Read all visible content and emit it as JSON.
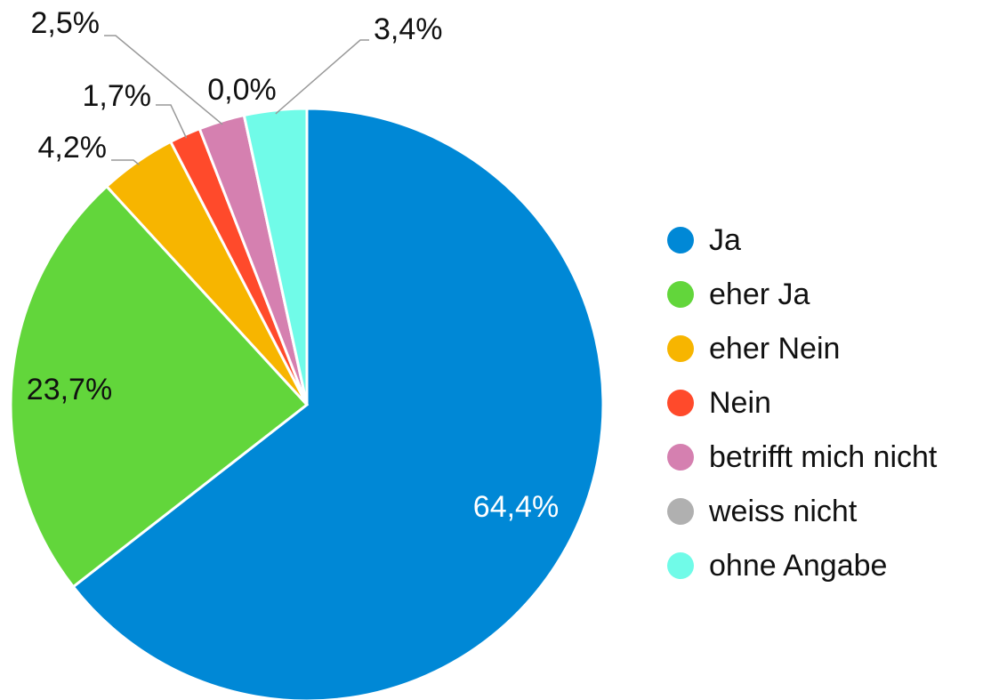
{
  "chart_data": {
    "type": "pie",
    "categories": [
      "Ja",
      "eher Ja",
      "eher Nein",
      "Nein",
      "betrifft mich nicht",
      "weiss nicht",
      "ohne Angabe"
    ],
    "values": [
      64.4,
      23.7,
      4.2,
      1.7,
      2.5,
      0.0,
      3.4
    ],
    "value_labels": [
      "64,4%",
      "23,7%",
      "4,2%",
      "1,7%",
      "2,5%",
      "0,0%",
      "3,4%"
    ],
    "colors": [
      "#0088d6",
      "#62d63b",
      "#f7b500",
      "#ff4a2b",
      "#d580b0",
      "#b0b0b0",
      "#70fbe8"
    ],
    "legend": "right"
  }
}
